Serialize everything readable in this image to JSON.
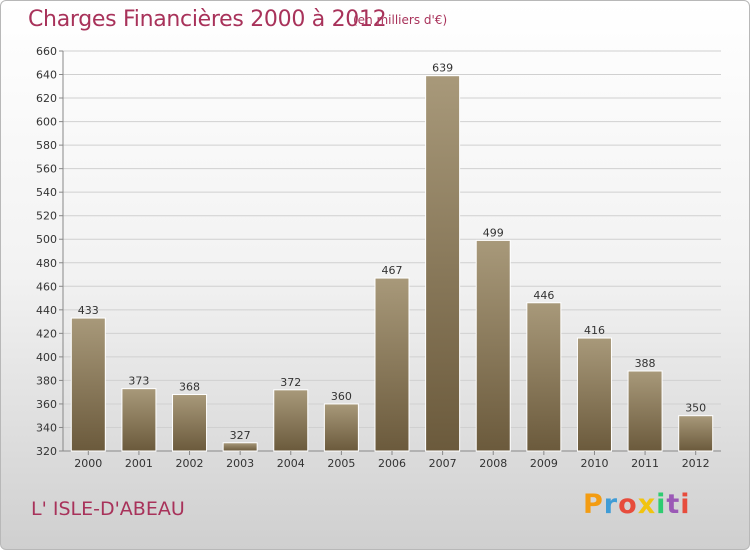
{
  "header": {
    "title": "Charges Financières 2000 à 2012",
    "subtitle": "(en milliers d'€)"
  },
  "footer": {
    "city": "L' ISLE-D'ABEAU",
    "brand": "Proxiti",
    "brand_colors": [
      "#f39c12",
      "#3f9cd6",
      "#e74c3c",
      "#f1c40f",
      "#2ecc71",
      "#9b59b6",
      "#e74c3c"
    ]
  },
  "colors": {
    "title": "#a8325a",
    "bar_top": "#a8997a",
    "bar_bottom": "#6b5a3c",
    "grid": "#d0d0d0"
  },
  "chart_data": {
    "type": "bar",
    "title": "Charges Financières 2000 à 2012",
    "subtitle": "(en milliers d'€)",
    "categories": [
      "2000",
      "2001",
      "2002",
      "2003",
      "2004",
      "2005",
      "2006",
      "2007",
      "2008",
      "2009",
      "2010",
      "2011",
      "2012"
    ],
    "values": [
      433,
      373,
      368,
      327,
      372,
      360,
      467,
      639,
      499,
      446,
      416,
      388,
      350
    ],
    "ylim": [
      320,
      660
    ],
    "yticks": [
      320,
      340,
      360,
      380,
      400,
      420,
      440,
      460,
      480,
      500,
      520,
      540,
      560,
      580,
      600,
      620,
      640,
      660
    ],
    "grid": true,
    "xlabel": "",
    "ylabel": ""
  }
}
